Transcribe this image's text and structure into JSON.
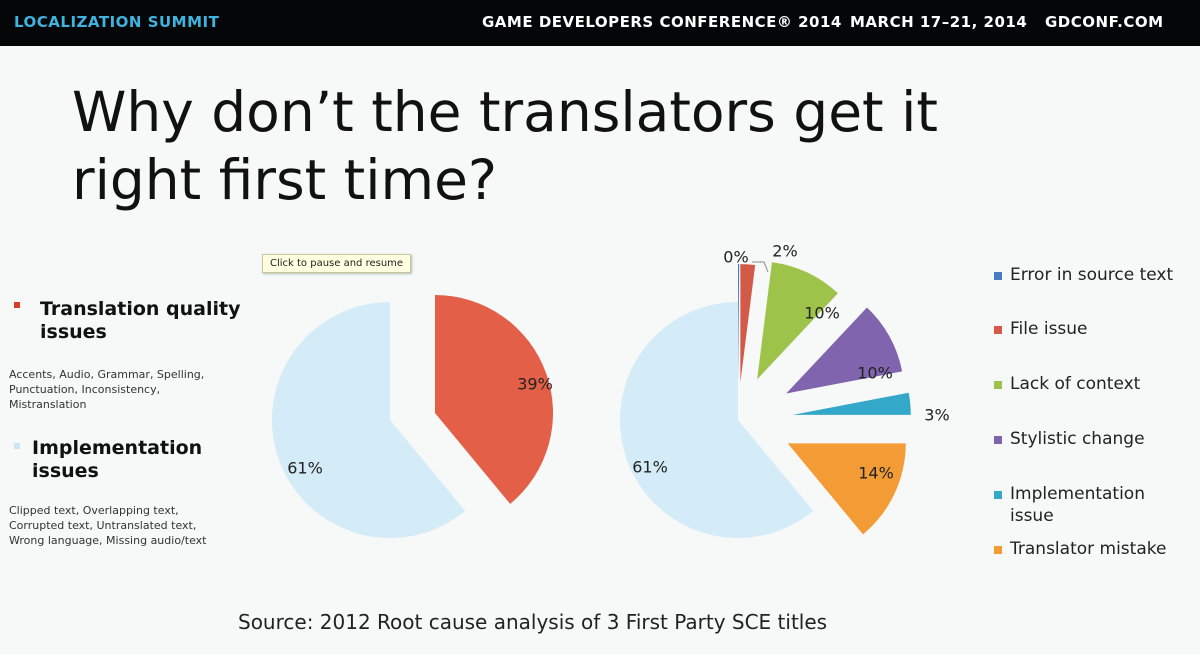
{
  "banner": {
    "event": "LOCALIZATION SUMMIT",
    "conference": "GAME DEVELOPERS CONFERENCE® 2014",
    "dates": "MARCH 17–21, 2014",
    "site": "GDCONF.COM",
    "event_color": "#3fb4e0"
  },
  "slide": {
    "title_line1": "Why don’t the translators get it",
    "title_line2": "right first time?",
    "tooltip": "Click to pause and resume",
    "source": "Source: 2012 Root cause analysis of 3 First Party SCE titles"
  },
  "left_legend": [
    {
      "heading_line1": "Translation quality",
      "heading_line2": "issues",
      "color": "#d93c2a",
      "desc_lines": [
        "Accents, Audio, Grammar, Spelling,",
        "Punctuation, Inconsistency,",
        "Mistranslation"
      ]
    },
    {
      "heading_line1": "Implementation",
      "heading_line2": "issues",
      "color": "#c9e7f5",
      "desc_lines": [
        "Clipped text, Overlapping text,",
        "Corrupted text, Untranslated text,",
        "Wrong language, Missing audio/text"
      ]
    }
  ],
  "chart_data": [
    {
      "type": "pie",
      "slices": [
        {
          "name": "Translation quality issues",
          "value": 39,
          "label": "39%",
          "color": "#e35f47"
        },
        {
          "name": "Implementation issues",
          "value": 61,
          "label": "61%",
          "color": "#d4ecf8"
        }
      ]
    },
    {
      "type": "pie",
      "slices": [
        {
          "name": "Error in source text",
          "value": 0,
          "label": "0%",
          "color": "#4a7dbf"
        },
        {
          "name": "File issue",
          "value": 2,
          "label": "2%",
          "color": "#d35a47"
        },
        {
          "name": "Lack of context",
          "value": 10,
          "label": "10%",
          "color": "#9dc34a"
        },
        {
          "name": "Stylistic change",
          "value": 10,
          "label": "10%",
          "color": "#8064ad"
        },
        {
          "name": "Implementation issue",
          "value": 3,
          "label": "3%",
          "color": "#33a8c9"
        },
        {
          "name": "Translator mistake",
          "value": 14,
          "label": "14%",
          "color": "#f39c35"
        },
        {
          "name": "",
          "value": 61,
          "label": "61%",
          "color": "#d4ecf8"
        }
      ],
      "legend": [
        {
          "label_line1": "Error in source text",
          "label_line2": "",
          "color": "#4a7dbf"
        },
        {
          "label_line1": "File issue",
          "label_line2": "",
          "color": "#d35a47"
        },
        {
          "label_line1": "Lack of context",
          "label_line2": "",
          "color": "#9dc34a"
        },
        {
          "label_line1": "Stylistic change",
          "label_line2": "",
          "color": "#8064ad"
        },
        {
          "label_line1": "Implementation",
          "label_line2": "issue",
          "color": "#33a8c9"
        },
        {
          "label_line1": "Translator mistake",
          "label_line2": "",
          "color": "#f39c35"
        }
      ],
      "legend_position": "right"
    }
  ]
}
